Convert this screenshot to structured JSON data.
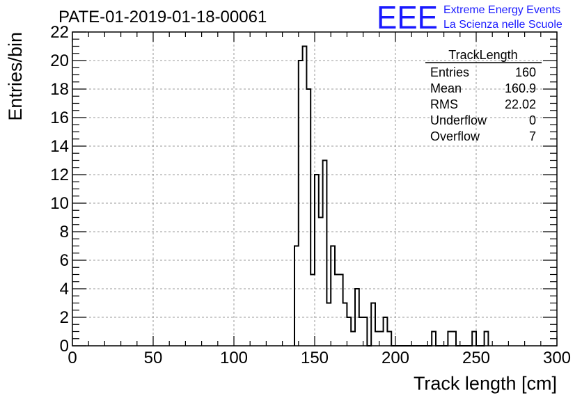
{
  "chart_data": {
    "type": "histogram",
    "title": "PATE-01-2019-01-18-00061",
    "xlabel": "Track length [cm]",
    "ylabel": "Entries/bin",
    "xlim": [
      0,
      300
    ],
    "ylim": [
      0,
      22
    ],
    "grid": true,
    "bin_width": 2.5,
    "x_ticks": [
      "0",
      "50",
      "100",
      "150",
      "200",
      "250",
      "300"
    ],
    "y_ticks": [
      "0",
      "2",
      "4",
      "6",
      "8",
      "10",
      "12",
      "14",
      "16",
      "18",
      "20",
      "22"
    ],
    "bins": [
      {
        "x": 137.5,
        "value": 7
      },
      {
        "x": 140,
        "value": 20
      },
      {
        "x": 142.5,
        "value": 21
      },
      {
        "x": 145,
        "value": 18
      },
      {
        "x": 147.5,
        "value": 5
      },
      {
        "x": 150,
        "value": 12
      },
      {
        "x": 152.5,
        "value": 9
      },
      {
        "x": 155,
        "value": 13
      },
      {
        "x": 157.5,
        "value": 3
      },
      {
        "x": 160,
        "value": 7
      },
      {
        "x": 162.5,
        "value": 5
      },
      {
        "x": 165,
        "value": 5
      },
      {
        "x": 167.5,
        "value": 3
      },
      {
        "x": 170,
        "value": 2
      },
      {
        "x": 172.5,
        "value": 1
      },
      {
        "x": 175,
        "value": 4
      },
      {
        "x": 177.5,
        "value": 2
      },
      {
        "x": 180,
        "value": 2
      },
      {
        "x": 182.5,
        "value": 0
      },
      {
        "x": 185,
        "value": 3
      },
      {
        "x": 187.5,
        "value": 1
      },
      {
        "x": 190,
        "value": 1
      },
      {
        "x": 192.5,
        "value": 2
      },
      {
        "x": 195,
        "value": 1
      },
      {
        "x": 197.5,
        "value": 0
      },
      {
        "x": 200,
        "value": 0
      },
      {
        "x": 222.5,
        "value": 1
      },
      {
        "x": 232.5,
        "value": 1
      },
      {
        "x": 235,
        "value": 1
      },
      {
        "x": 247.5,
        "value": 1
      },
      {
        "x": 255,
        "value": 1
      }
    ],
    "stats": {
      "name": "TrackLength",
      "rows": [
        {
          "label": "Entries",
          "value": "160"
        },
        {
          "label": "Mean",
          "value": "160.9"
        },
        {
          "label": "RMS",
          "value": "22.02"
        },
        {
          "label": "Underflow",
          "value": "0"
        },
        {
          "label": "Overflow",
          "value": "7"
        }
      ]
    }
  },
  "branding": {
    "logo_text": "EEE",
    "line1": "Extreme Energy Events",
    "line2": "La Scienza nelle Scuole",
    "color": "#1a1aff"
  }
}
